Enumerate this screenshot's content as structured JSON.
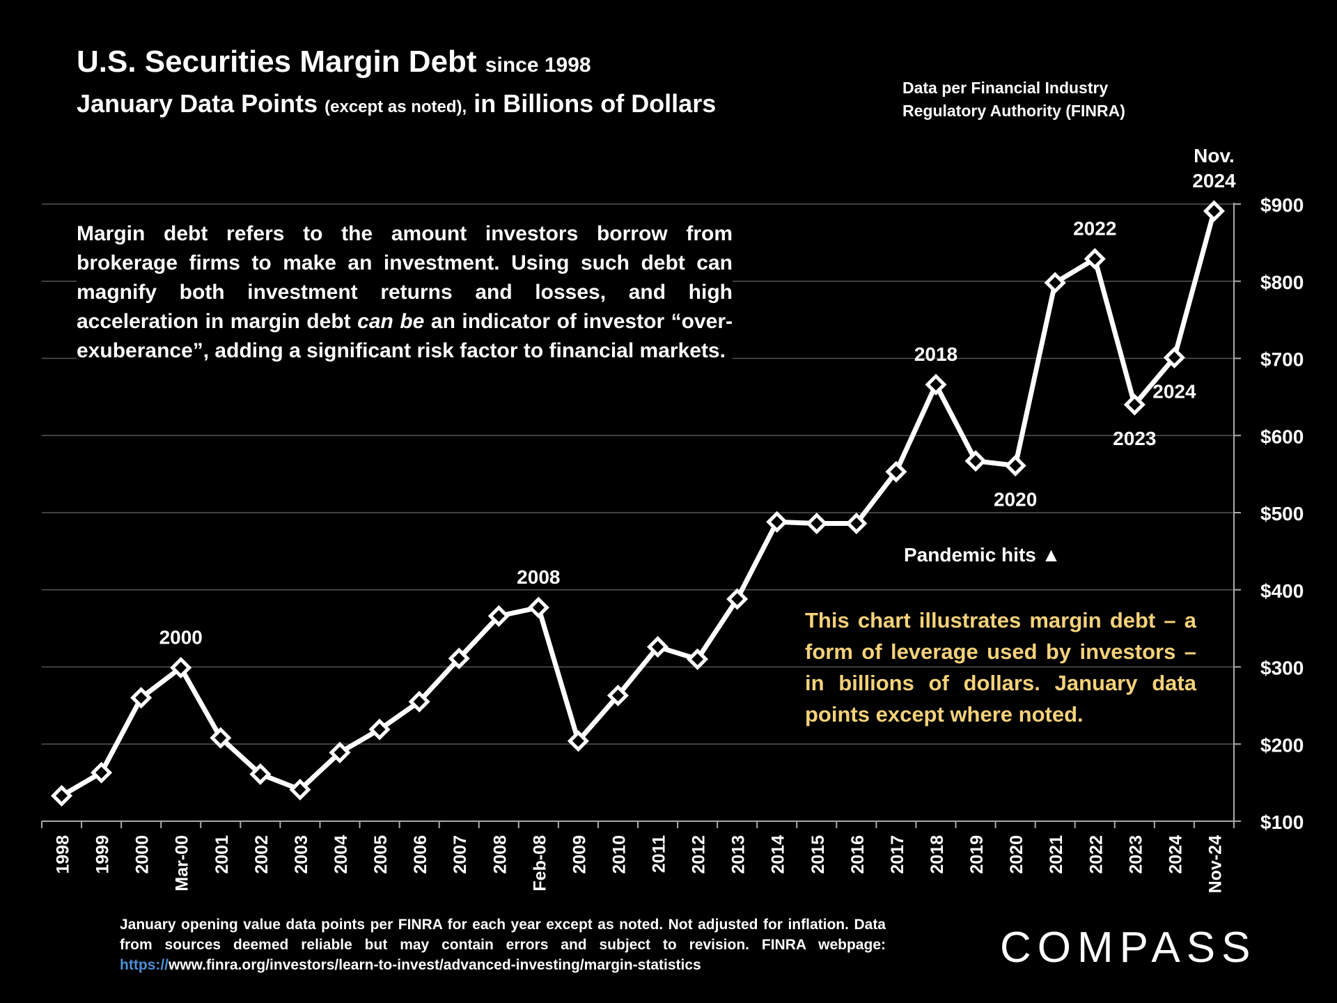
{
  "header": {
    "title_main": "U.S. Securities Margin Debt",
    "title_small": "since 1998",
    "subtitle_a": "January Data Points",
    "subtitle_b": "(except as noted),",
    "subtitle_c": "in Billions of Dollars",
    "source_line1": "Data per Financial Industry",
    "source_line2": "Regulatory Authority (FINRA)"
  },
  "description": {
    "part1": "Margin debt refers to the amount investors borrow from brokerage firms to make an investment. Using such debt can magnify both investment returns and losses, and high acceleration in margin debt ",
    "emph": "can be",
    "part2": " an indicator of investor “over-exuberance”, adding a significant risk factor to financial markets."
  },
  "callout": "This chart illustrates margin debt – a form of leverage used by investors – in billions of dollars. January data points except where noted.",
  "footer": {
    "text": "January opening value data points per FINRA for each year except as noted. Not adjusted for inflation. Data from sources deemed reliable but may contain errors and subject to revision. FINRA webpage: ",
    "link_proto": "https://",
    "link_rest": "www.finra.org/investors/learn-to-invest/advanced-investing/margin-statistics"
  },
  "brand": {
    "logo": "COMPASS"
  },
  "colors": {
    "background": "#000000",
    "line": "#ffffff",
    "callout": "#f5d27a",
    "link": "#4a8fd8",
    "grid": "#555555"
  },
  "chart_data": {
    "type": "line",
    "categories": [
      "1998",
      "1999",
      "2000",
      "Mar-00",
      "2001",
      "2002",
      "2003",
      "2004",
      "2005",
      "2006",
      "2007",
      "2008",
      "Feb-08",
      "2009",
      "2010",
      "2011",
      "2012",
      "2013",
      "2014",
      "2015",
      "2016",
      "2017",
      "2018",
      "2019",
      "2020",
      "2021",
      "2022",
      "2023",
      "2024",
      "Nov-24"
    ],
    "series": [
      {
        "values": [
          133,
          163,
          260,
          299,
          208,
          161,
          141,
          189,
          219,
          255,
          311,
          366,
          377,
          204,
          263,
          326,
          310,
          388,
          488,
          486,
          486,
          553,
          666,
          567,
          561,
          798,
          829,
          640,
          701,
          891
        ]
      }
    ],
    "ylim": [
      100,
      900
    ],
    "yticks": [
      100,
      200,
      300,
      400,
      500,
      600,
      700,
      800,
      900
    ],
    "ytick_prefix": "$",
    "y_axis_position": "right",
    "grid": true,
    "marker": "diamond",
    "annotations": [
      {
        "text": "2000",
        "x": "Mar-00",
        "y": 299,
        "pos": "above"
      },
      {
        "text": "2008",
        "x": "Feb-08",
        "y": 377,
        "pos": "above"
      },
      {
        "text": "2018",
        "x": "2018",
        "y": 666,
        "pos": "above"
      },
      {
        "text": "2020",
        "x": "2020",
        "y": 561,
        "pos": "below"
      },
      {
        "text": "2022",
        "x": "2022",
        "y": 829,
        "pos": "above"
      },
      {
        "text": "2023",
        "x": "2023",
        "y": 640,
        "pos": "below"
      },
      {
        "text": "2024",
        "x": "2024",
        "y": 701,
        "pos": "below"
      },
      {
        "text": "Nov.",
        "x": "Nov-24",
        "y": 891,
        "pos": "above2"
      },
      {
        "text": "2024",
        "x": "Nov-24",
        "y": 891,
        "pos": "above"
      }
    ],
    "pandemic_label": "Pandemic hits ▲"
  }
}
